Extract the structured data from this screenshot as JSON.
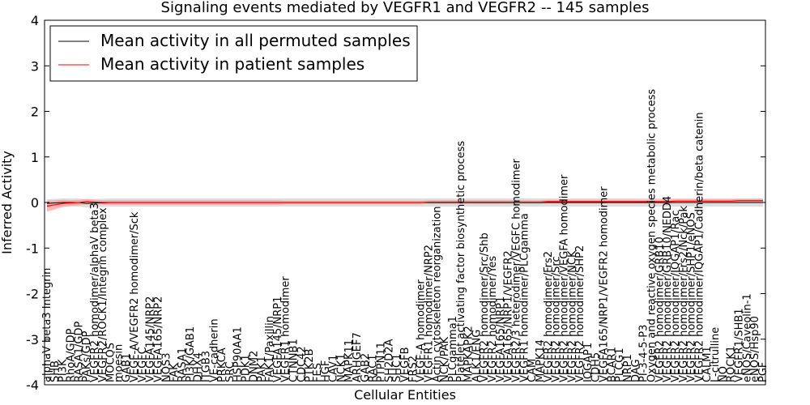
{
  "chart_data": {
    "type": "line",
    "title": "Signaling events mediated by VEGFR1 and VEGFR2 -- 145 samples",
    "xlabel": "Cellular Entities",
    "ylabel": "Inferred Activity",
    "ylim": [
      -4,
      4
    ],
    "yticks": [
      -4,
      -3,
      -2,
      -1,
      0,
      1,
      2,
      3,
      4
    ],
    "legend_position": "top-left",
    "colors": {
      "permuted": "#000000",
      "patient": "#ff0000",
      "permuted_band": "#c8c8c8",
      "patient_band": "#ff9999"
    },
    "categories": [
      "alphaV beta3 Integrin",
      "SHB",
      "PI3K",
      "RhoA/GDP",
      "RASA1/GDP",
      "PAKs/GDP",
      "VEGFR2 homodimer/alphaV beta3",
      "VEGFR2/ROCK1/Integrin complex",
      "MOCOS",
      "moesin",
      "GAB1",
      "VEGF-A/VEGFR2 homodimer/Sck",
      "VEGFC",
      "VEGFA145/NRP2",
      "VEGFA165/NRP2",
      "NOS3",
      "FAK",
      "RASA1",
      "PI3K/GAB1",
      "DHX4",
      "ITGB3",
      "VE-cadherin",
      "PRKCA",
      "SRC",
      "HSP90AA1",
      "PDK1",
      "DNM2",
      "PAK1",
      "FAK1/Paxillin",
      "VEGFA145/NRP1",
      "VEGFR1 homodimer",
      "CTNNB1",
      "CDC42",
      "PTK2B",
      "FES",
      "HGF",
      "CAV1",
      "NCK1",
      "MAPK11",
      "ARHGEF7",
      "GAB2",
      "RAC1",
      "PTPN11",
      "SH2D2A",
      "SHC1",
      "VEGFB",
      "FRS2",
      "VEGF-A homodimer",
      "VEGFR1 homodimer/NRP2",
      "Actin cytoskeleton reorganization",
      "NCK/PAK",
      "PLCgamma1",
      "Platelet activating factor biosynthetic process",
      "MAPKAPK2",
      "ALK1/ENG",
      "VEGFR2 homodimer/Src/Shb",
      "VEGFR2 homodimer/Yes",
      "VEGFA165/NRP1",
      "VEGFA165/NRP1/VEGFR2",
      "VEGFR2/3 heterodimer/VEGFC homodimer",
      "VEGFR1 homodimer/PLCgamma",
      "CAM",
      "MAPK14",
      "VEGFR2 homodimer/Frs2",
      "VEGFR2 homodimer/Src",
      "VEGFR2 homodimer/VEGFA homodimer",
      "VEGFR2 homodimer/NCK",
      "VEGFR2 homodimer/SHP2",
      "IQGAP1",
      "CDH5",
      "VEGFA165/NRP1/VEGFR2 homodimer",
      "BCAR1",
      "PLCG1",
      "NRP1",
      "DAG",
      "PI-3-4-5-P3",
      "Oxygen and reactive oxygen species metabolic process",
      "VEGFR2 homodimer/GRB10",
      "VEGFR2 homodimer/GRB10/NEDD4",
      "VEGFR2 homodimer/IQGAP1/Rac",
      "VEGFR2 homodimer/Frs2/Nck/Pak",
      "VEGFR2 homodimer/SHP1/eNOS",
      "VEGFR2 homodimer/IQGAP1/Cadherin/beta catenin",
      "CALM1",
      "L-citrulline",
      "NO",
      "ROCK1",
      "VEGFR1/SHB1",
      "eNOS/Caveolin-1",
      "eNOS/Hsp90",
      "PGF"
    ],
    "series": [
      {
        "name": "Mean activity in all permuted samples",
        "values": [
          -0.02,
          -0.01,
          0,
          0,
          0,
          -0.02,
          -0.01,
          -0.01,
          0,
          0,
          0,
          0,
          0,
          0,
          0,
          0,
          0,
          0,
          0,
          0,
          0,
          0,
          0,
          0,
          0,
          0,
          0,
          0,
          0,
          0,
          0,
          0,
          0,
          0,
          0,
          0,
          0,
          0,
          0,
          0,
          0,
          0,
          0,
          0,
          0,
          0,
          0,
          0,
          0,
          0,
          0,
          0,
          0,
          0,
          0,
          0,
          0,
          0,
          0,
          0,
          0,
          0,
          0,
          0,
          0,
          0,
          0,
          0,
          0,
          0,
          0,
          0,
          0,
          0,
          0,
          0,
          0,
          0,
          0,
          0,
          0,
          0,
          0,
          0,
          0,
          0,
          0,
          0,
          0,
          0,
          0
        ]
      },
      {
        "name": "Mean activity in patient samples",
        "values": [
          -0.08,
          -0.05,
          -0.02,
          -0.01,
          0,
          0.02,
          0.01,
          0,
          0,
          0,
          0,
          0,
          0,
          0,
          0,
          0,
          0,
          0,
          0,
          0,
          0,
          0,
          0,
          0,
          0,
          0,
          0,
          0,
          0,
          0,
          0,
          0,
          0,
          0,
          0,
          0,
          0,
          0,
          0,
          0,
          0,
          0,
          0,
          0,
          0,
          0,
          0,
          0,
          0.01,
          0.01,
          0.01,
          0.01,
          0.01,
          0.01,
          0.01,
          0.01,
          0.01,
          0.01,
          0.01,
          0.01,
          0.01,
          0.01,
          0.01,
          0.02,
          0.02,
          0.02,
          0.02,
          0.02,
          0.02,
          0.02,
          0.02,
          0.02,
          0.02,
          0.02,
          0.02,
          0.02,
          0.02,
          0.02,
          0.02,
          0.03,
          0.03,
          0.03,
          0.03,
          0.03,
          0.03,
          0.03,
          0.03,
          0.04,
          0.04,
          0.04,
          0.04
        ]
      }
    ],
    "bands": {
      "permuted_halfwidth": 0.09,
      "patient_halfwidth": [
        0.12,
        0.1,
        0.08,
        0.06,
        0.06,
        0.06,
        0.05,
        0.05,
        0.05,
        0.05,
        0.05,
        0.05,
        0.05,
        0.05,
        0.05,
        0.05,
        0.05,
        0.05,
        0.05,
        0.05,
        0.05,
        0.05,
        0.05,
        0.05,
        0.05,
        0.05,
        0.05,
        0.05,
        0.05,
        0.05,
        0.04,
        0.04,
        0.04,
        0.04,
        0.04,
        0.04,
        0.04,
        0.04,
        0.04,
        0.04,
        0.04,
        0.04,
        0.04,
        0.04,
        0.04,
        0.04,
        0.04,
        0.04,
        0.04,
        0.04,
        0.04,
        0.04,
        0.04,
        0.04,
        0.04,
        0.04,
        0.04,
        0.04,
        0.04,
        0.04,
        0.04,
        0.04,
        0.04,
        0.04,
        0.04,
        0.04,
        0.04,
        0.04,
        0.04,
        0.04,
        0.04,
        0.04,
        0.04,
        0.04,
        0.04,
        0.04,
        0.04,
        0.04,
        0.04,
        0.04,
        0.04,
        0.04,
        0.04,
        0.04,
        0.04,
        0.04,
        0.04,
        0.04,
        0.04,
        0.04,
        0.04
      ]
    }
  }
}
